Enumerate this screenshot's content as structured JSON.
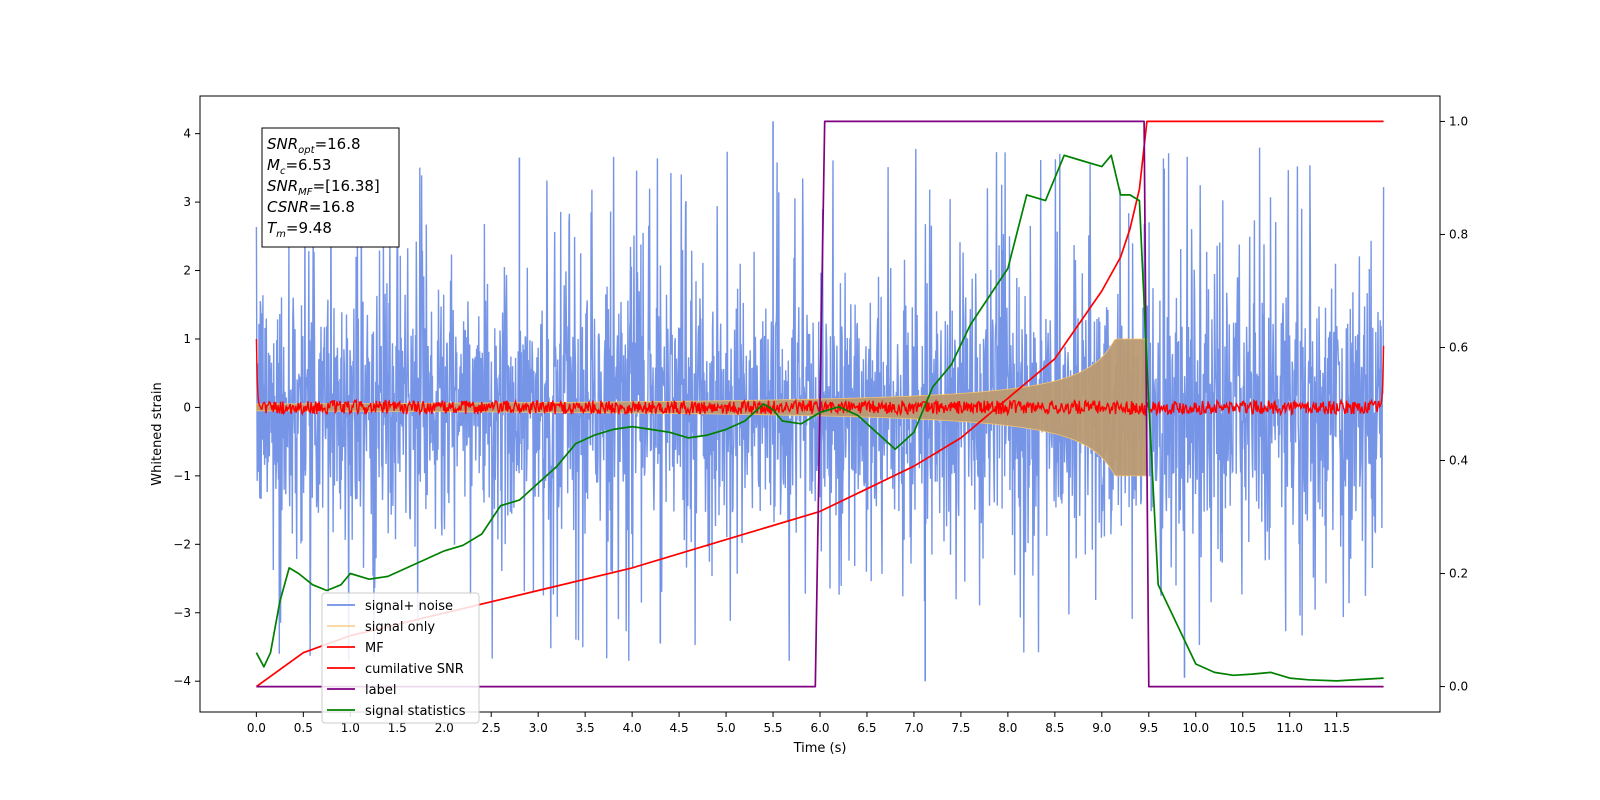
{
  "chart_data": {
    "type": "line",
    "title": "",
    "xlabel": "Time (s)",
    "ylabel": "Whitened strain",
    "y2label": "",
    "xlim": [
      -0.6,
      12.6
    ],
    "ylim": [
      -4.45,
      4.55
    ],
    "y2lim": [
      -0.045,
      1.045
    ],
    "x_ticks": [
      0.0,
      0.5,
      1.0,
      1.5,
      2.0,
      2.5,
      3.0,
      3.5,
      4.0,
      4.5,
      5.0,
      5.5,
      6.0,
      6.5,
      7.0,
      7.5,
      8.0,
      8.5,
      9.0,
      9.5,
      10.0,
      10.5,
      11.0,
      11.5
    ],
    "x_tick_labels": [
      "0.0",
      "0.5",
      "1.0",
      "1.5",
      "2.0",
      "2.5",
      "3.0",
      "3.5",
      "4.0",
      "4.5",
      "5.0",
      "5.5",
      "6.0",
      "6.5",
      "7.0",
      "7.5",
      "8.0",
      "8.5",
      "9.0",
      "9.5",
      "10.0",
      "10.5",
      "11.0",
      "11.5"
    ],
    "y_ticks": [
      4,
      3,
      2,
      1,
      0,
      -1,
      -2,
      -3,
      -4
    ],
    "y_tick_labels": [
      "4",
      "3",
      "2",
      "1",
      "0",
      "−1",
      "−2",
      "−3",
      "−4"
    ],
    "y2_ticks": [
      1.0,
      0.8,
      0.6,
      0.4,
      0.2,
      0.0
    ],
    "y2_tick_labels": [
      "1.0",
      "0.8",
      "0.6",
      "0.4",
      "0.2",
      "0.0"
    ],
    "grid": false,
    "legend_position": "lower-left",
    "colors": {
      "signal_noise": "#6f8fe6",
      "signal_only": "#f5c36b",
      "overlap": "#bb9a72",
      "mf": "#ff0000",
      "cumulative_snr": "#ff0000",
      "label": "#800080",
      "signal_statistics": "#008000"
    },
    "annotation": {
      "lines": [
        {
          "sym": "SNR",
          "sub": "opt",
          "val": "=16.8"
        },
        {
          "sym": "M",
          "sub": "c",
          "val": "=6.53"
        },
        {
          "sym": "SNR",
          "sub": "MF",
          "val": "=[16.38]"
        },
        {
          "sym": "CSNR",
          "sub": "",
          "val": "=16.8"
        },
        {
          "sym": "T",
          "sub": "m",
          "val": "=9.48"
        }
      ]
    },
    "series": [
      {
        "name": "signal+ noise",
        "axis": "left",
        "style": "noise",
        "x_range": [
          0.0,
          12.0
        ],
        "typical_envelope": [
          -2.3,
          2.3
        ],
        "peak_max": 4.18,
        "peak_min": -4.0
      },
      {
        "name": "signal only",
        "axis": "left",
        "style": "chirp",
        "x_range": [
          0.0,
          9.48
        ],
        "amplitude_start": 0.05,
        "amplitude_end": 1.0
      },
      {
        "name": "MF",
        "axis": "left",
        "style": "mf",
        "x_range": [
          0.0,
          12.0
        ],
        "edge_value": 1.0,
        "band": 0.1
      },
      {
        "name": "cumilative SNR",
        "axis": "right",
        "x": [
          0.0,
          0.5,
          1.0,
          2.0,
          3.0,
          4.0,
          5.0,
          6.0,
          6.5,
          7.0,
          7.5,
          8.0,
          8.5,
          9.0,
          9.2,
          9.3,
          9.4,
          9.48,
          10.0,
          11.0,
          12.0
        ],
        "y": [
          0.0,
          0.06,
          0.09,
          0.13,
          0.17,
          0.21,
          0.26,
          0.31,
          0.35,
          0.39,
          0.44,
          0.51,
          0.58,
          0.7,
          0.76,
          0.81,
          0.88,
          1.0,
          1.0,
          1.0,
          1.0
        ]
      },
      {
        "name": "label",
        "axis": "right",
        "x": [
          0.0,
          5.95,
          6.05,
          9.45,
          9.5,
          12.0
        ],
        "y": [
          0.0,
          0.0,
          1.0,
          1.0,
          0.0,
          0.0
        ]
      },
      {
        "name": "signal statistics",
        "axis": "right",
        "x": [
          0.0,
          0.08,
          0.15,
          0.25,
          0.35,
          0.45,
          0.6,
          0.75,
          0.9,
          1.0,
          1.2,
          1.4,
          1.6,
          1.8,
          2.0,
          2.2,
          2.4,
          2.6,
          2.8,
          3.0,
          3.2,
          3.4,
          3.6,
          3.8,
          4.0,
          4.2,
          4.4,
          4.6,
          4.8,
          5.0,
          5.2,
          5.4,
          5.5,
          5.6,
          5.8,
          6.0,
          6.2,
          6.4,
          6.6,
          6.8,
          7.0,
          7.2,
          7.4,
          7.6,
          7.8,
          8.0,
          8.2,
          8.4,
          8.6,
          8.8,
          9.0,
          9.1,
          9.2,
          9.3,
          9.4,
          9.5,
          9.6,
          9.8,
          10.0,
          10.2,
          10.4,
          10.6,
          10.8,
          11.0,
          11.2,
          11.5,
          12.0
        ],
        "y": [
          0.06,
          0.035,
          0.06,
          0.15,
          0.21,
          0.2,
          0.18,
          0.17,
          0.18,
          0.2,
          0.19,
          0.195,
          0.21,
          0.225,
          0.24,
          0.25,
          0.27,
          0.32,
          0.33,
          0.36,
          0.39,
          0.43,
          0.445,
          0.455,
          0.46,
          0.455,
          0.45,
          0.44,
          0.445,
          0.455,
          0.47,
          0.5,
          0.49,
          0.47,
          0.465,
          0.485,
          0.495,
          0.48,
          0.45,
          0.42,
          0.45,
          0.53,
          0.57,
          0.64,
          0.69,
          0.74,
          0.87,
          0.86,
          0.94,
          0.93,
          0.92,
          0.94,
          0.87,
          0.87,
          0.86,
          0.5,
          0.18,
          0.11,
          0.04,
          0.025,
          0.02,
          0.022,
          0.025,
          0.015,
          0.012,
          0.01,
          0.015
        ]
      }
    ]
  }
}
